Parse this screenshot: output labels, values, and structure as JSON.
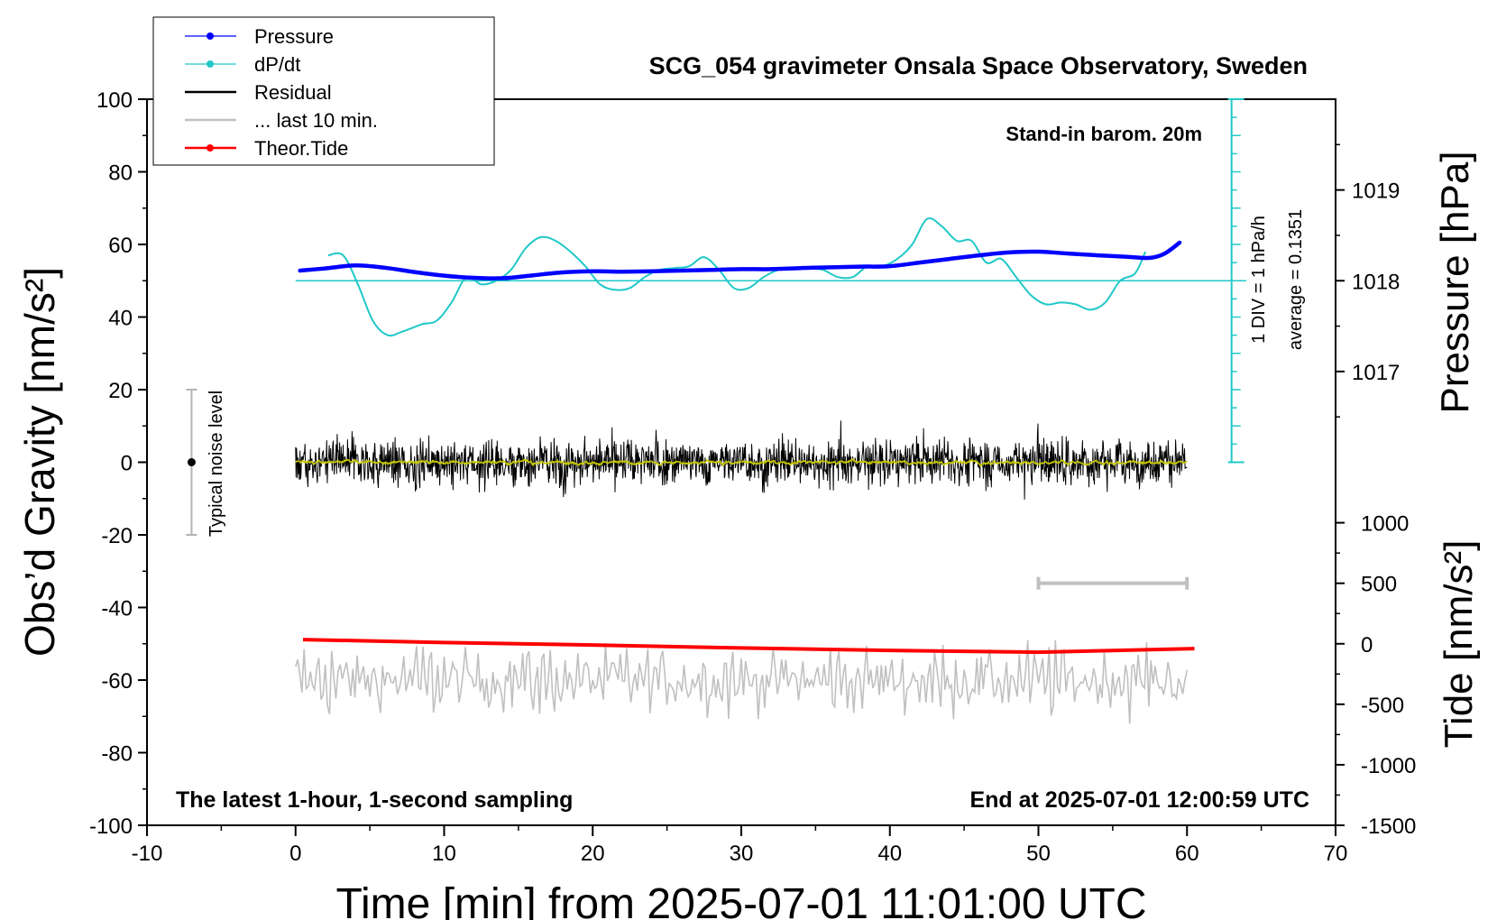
{
  "chart_data": {
    "type": "line",
    "title": "SCG_054 gravimeter Onsala Space Observatory, Sweden",
    "xlabel": "Time [min] from 2025-07-01 11:01:00 UTC",
    "ylabel_left": "Obs’d Gravity [nm/s²]",
    "ylabel_right_top": "Pressure [hPa]",
    "ylabel_right_bottom": "Tide [nm/s²]",
    "xlim": [
      -10,
      70
    ],
    "ylim": [
      -100,
      100
    ],
    "xticks": [
      -10,
      0,
      10,
      20,
      30,
      40,
      50,
      60,
      70
    ],
    "xtick_labels": [
      "-10",
      "0",
      "10",
      "20",
      "30",
      "40",
      "50",
      "60",
      "70"
    ],
    "yticks": [
      -100,
      -80,
      -60,
      -40,
      -20,
      0,
      20,
      40,
      60,
      80,
      100
    ],
    "ytick_labels": [
      "-100",
      "-80",
      "-60",
      "-40",
      "-20",
      "0",
      "20",
      "40",
      "60",
      "80",
      "100"
    ],
    "pressure_axis": {
      "ticks": [
        1017,
        1018,
        1019
      ],
      "tick_labels": [
        "1017",
        "1018",
        "1019"
      ],
      "label": "Pressure [hPa]"
    },
    "tide_axis": {
      "ticks": [
        -1500,
        -1000,
        -500,
        0,
        500,
        1000
      ],
      "tick_labels": [
        "-1500",
        "-1000",
        "-500",
        "0",
        "500",
        "1000"
      ],
      "label": "Tide [nm/s²]"
    },
    "legend": {
      "placement": "top-left",
      "entries": [
        {
          "label": "Pressure",
          "color": "#0000ff",
          "marker": true
        },
        {
          "label": "dP/dt",
          "color": "#20c8c8",
          "marker": true
        },
        {
          "label": "Residual",
          "color": "#000000",
          "marker": false
        },
        {
          "label": "... last 10 min.",
          "color": "#c0c0c0",
          "marker": false
        },
        {
          "label": "Theor.Tide",
          "color": "#ff0000",
          "marker": true
        }
      ]
    },
    "annotations": {
      "barometer": "Stand-in barom. 20m",
      "div_scale": "1 DIV = 1 hPa/h",
      "average": "average = 0.1351",
      "noise": "Typical noise level",
      "sampling": "The latest 1-hour, 1-second sampling",
      "end": "End at 2025-07-01 12:00:59 UTC"
    },
    "noise_bar": {
      "x": -7,
      "center": 0,
      "range": [
        -20,
        20
      ]
    },
    "last10_bar": {
      "x_range": [
        50,
        60
      ],
      "tide_value": 500
    },
    "dpdt_scale": {
      "x": 63,
      "range": [
        0,
        100
      ],
      "zero_level": 50,
      "color": "#20c8c8"
    },
    "series": [
      {
        "name": "Pressure",
        "color": "#0000ff",
        "x": [
          0.3,
          2,
          4,
          6,
          8,
          10,
          12,
          14,
          16,
          18,
          20,
          22,
          24,
          26,
          28,
          30,
          32,
          34,
          36,
          38,
          40,
          42,
          44,
          46,
          48,
          50,
          52,
          54,
          56,
          57.5,
          58.5,
          59.5
        ],
        "y": [
          52.8,
          53.4,
          54.2,
          53.6,
          52.4,
          51.4,
          50.8,
          50.7,
          51.5,
          52.3,
          52.6,
          52.5,
          52.6,
          52.8,
          53.0,
          53.2,
          53.2,
          53.5,
          53.7,
          53.9,
          54.0,
          55.0,
          56.0,
          57.0,
          57.8,
          58.0,
          57.5,
          57.0,
          56.6,
          56.3,
          57.5,
          60.5
        ]
      },
      {
        "name": "dP/dt",
        "color": "#20c8c8",
        "x": [
          2.2,
          3.2,
          4.2,
          5.2,
          6.2,
          7.2,
          8.5,
          9.5,
          10.5,
          11.5,
          12.5,
          13.5,
          14.5,
          15.5,
          16.5,
          17.5,
          18.5,
          19.5,
          20.5,
          21.5,
          22.5,
          23.5,
          24.5,
          25.5,
          26.5,
          27.5,
          28.5,
          29.5,
          30.5,
          31.5,
          32.5,
          33.5,
          34.5,
          35.5,
          36.5,
          37.5,
          38.5,
          39.5,
          40.5,
          41.5,
          42.5,
          43.5,
          44.5,
          45.5,
          46.5,
          47.5,
          48.5,
          49.5,
          50.5,
          51.5,
          52.5,
          53.5,
          54.5,
          55.5,
          56.5,
          57.2
        ],
        "y": [
          57,
          57,
          49,
          39,
          35,
          36,
          38,
          39,
          44,
          51,
          49,
          50,
          53,
          59,
          62,
          61,
          58,
          54,
          49,
          47.5,
          48,
          51,
          53,
          53.5,
          54,
          56.5,
          53,
          48,
          48,
          51,
          53,
          53.5,
          53.5,
          53,
          51,
          51,
          54,
          54,
          56,
          60,
          67,
          65,
          61,
          61,
          55,
          56,
          51,
          46,
          43.5,
          44,
          43.5,
          42,
          44,
          50,
          52,
          58
        ]
      },
      {
        "name": "Residual",
        "color": "#000000",
        "x_range": [
          0,
          60
        ],
        "y_center": 0,
        "y_range": [
          -13,
          13
        ],
        "note_for_viewer": ""
      },
      {
        "name": "... last 10 min.",
        "color": "#c0c0c0",
        "x_range": [
          0,
          60
        ],
        "tide_center": -300,
        "tide_range": [
          -660,
          30
        ]
      },
      {
        "name": "Theor.Tide",
        "color": "#ff0000",
        "x": [
          0.5,
          10,
          20,
          30,
          40,
          50,
          60.5
        ],
        "tide": [
          35,
          10,
          -10,
          -35,
          -55,
          -70,
          -40
        ]
      }
    ],
    "residual_trend": {
      "color": "#c8c800",
      "y_center": 0
    }
  }
}
